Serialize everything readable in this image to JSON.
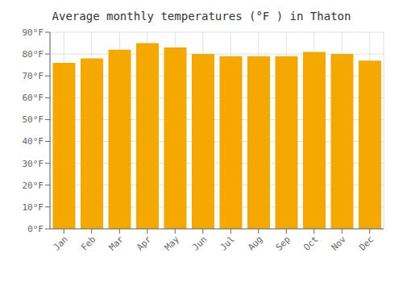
{
  "chart_data": {
    "type": "bar",
    "title": "Average monthly temperatures (°F ) in Thaton",
    "categories": [
      "Jan",
      "Feb",
      "Mar",
      "Apr",
      "May",
      "Jun",
      "Jul",
      "Aug",
      "Sep",
      "Oct",
      "Nov",
      "Dec"
    ],
    "values": [
      76,
      78,
      82,
      85,
      83,
      80,
      79,
      79,
      79,
      81,
      80,
      77
    ],
    "color": "#F5A800",
    "ylim": [
      0,
      90
    ],
    "yticks": [
      {
        "value": 0,
        "label": "0°F"
      },
      {
        "value": 10,
        "label": "10°F"
      },
      {
        "value": 20,
        "label": "20°F"
      },
      {
        "value": 30,
        "label": "30°F"
      },
      {
        "value": 40,
        "label": "40°F"
      },
      {
        "value": 50,
        "label": "50°F"
      },
      {
        "value": 60,
        "label": "60°F"
      },
      {
        "value": 70,
        "label": "70°F"
      },
      {
        "value": 80,
        "label": "80°F"
      },
      {
        "value": 90,
        "label": "90°F"
      }
    ],
    "grid": true
  }
}
